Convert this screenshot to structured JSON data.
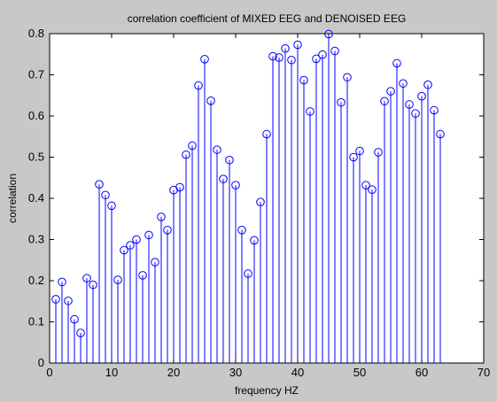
{
  "chart_data": {
    "type": "stem",
    "title": "correlation coefficient of MIXED EEG and DENOISED EEG",
    "xlabel": "frequency  HZ",
    "ylabel": "correlation",
    "xlim": [
      0,
      70
    ],
    "ylim": [
      0,
      0.8
    ],
    "xticks": [
      "0",
      "10",
      "20",
      "30",
      "40",
      "50",
      "60",
      "70"
    ],
    "yticks": [
      "0",
      "0.1",
      "0.2",
      "0.3",
      "0.4",
      "0.5",
      "0.6",
      "0.7",
      "0.8"
    ],
    "grid": false,
    "marker": "circle",
    "series_color": "#0000ff",
    "background_color": "#c8c8c8",
    "plot_area_color": "#ffffff",
    "x": [
      1,
      2,
      3,
      4,
      5,
      6,
      7,
      8,
      9,
      10,
      11,
      12,
      13,
      14,
      15,
      16,
      17,
      18,
      19,
      20,
      21,
      22,
      23,
      24,
      25,
      26,
      27,
      28,
      29,
      30,
      31,
      32,
      33,
      34,
      35,
      36,
      37,
      38,
      39,
      40,
      41,
      42,
      43,
      44,
      45,
      46,
      47,
      48,
      49,
      50,
      51,
      52,
      53,
      54,
      55,
      56,
      57,
      58,
      59,
      60,
      61,
      62,
      63
    ],
    "values": [
      0.155,
      0.197,
      0.151,
      0.106,
      0.073,
      0.206,
      0.19,
      0.434,
      0.408,
      0.382,
      0.202,
      0.274,
      0.286,
      0.3,
      0.213,
      0.311,
      0.245,
      0.355,
      0.323,
      0.42,
      0.427,
      0.506,
      0.528,
      0.674,
      0.738,
      0.637,
      0.518,
      0.447,
      0.493,
      0.432,
      0.323,
      0.217,
      0.298,
      0.391,
      0.556,
      0.745,
      0.742,
      0.764,
      0.736,
      0.773,
      0.687,
      0.611,
      0.739,
      0.749,
      0.799,
      0.758,
      0.633,
      0.694,
      0.5,
      0.515,
      0.432,
      0.421,
      0.512,
      0.636,
      0.66,
      0.728,
      0.679,
      0.628,
      0.606,
      0.648,
      0.676,
      0.614,
      0.556
    ]
  }
}
